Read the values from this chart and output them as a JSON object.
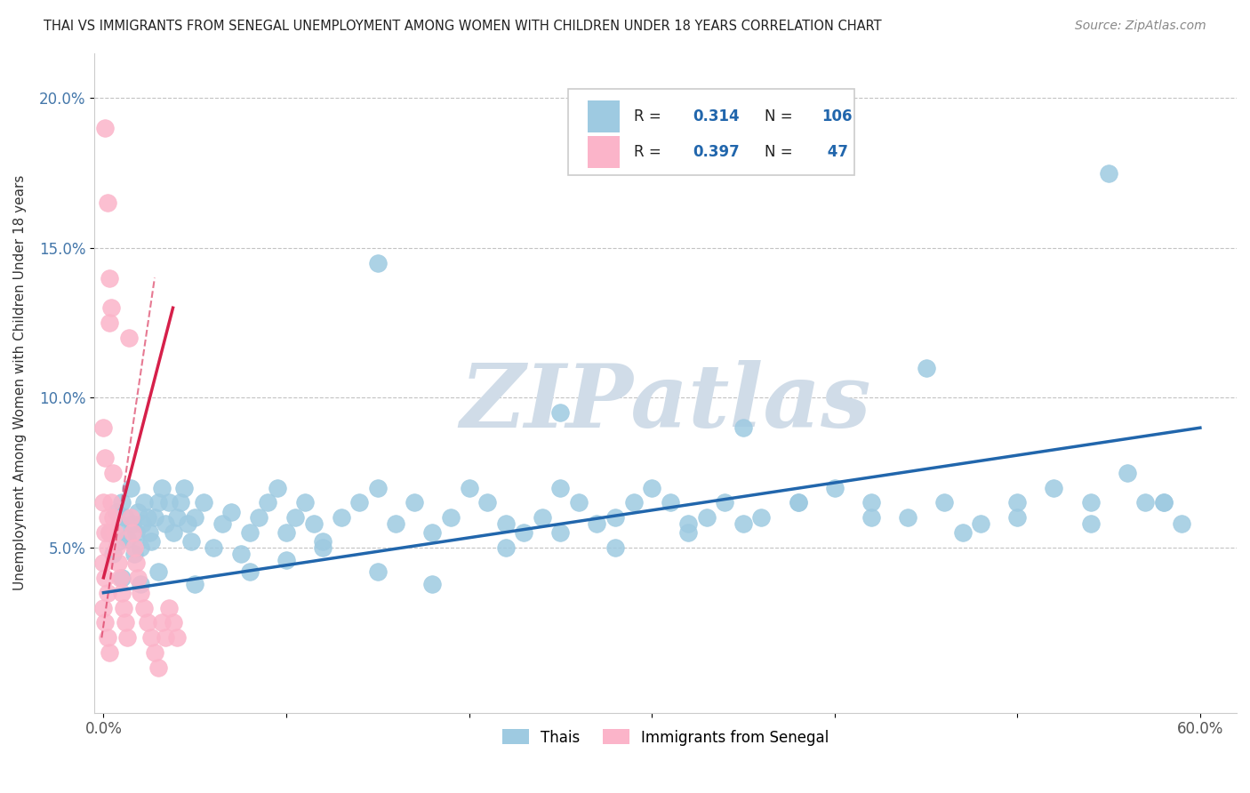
{
  "title": "THAI VS IMMIGRANTS FROM SENEGAL UNEMPLOYMENT AMONG WOMEN WITH CHILDREN UNDER 18 YEARS CORRELATION CHART",
  "source": "Source: ZipAtlas.com",
  "ylabel": "Unemployment Among Women with Children Under 18 years",
  "xlim": [
    -0.005,
    0.62
  ],
  "ylim": [
    -0.005,
    0.215
  ],
  "yticks": [
    0.05,
    0.1,
    0.15,
    0.2
  ],
  "ytick_labels": [
    "5.0%",
    "10.0%",
    "15.0%",
    "20.0%"
  ],
  "xticks": [
    0.0,
    0.1,
    0.2,
    0.3,
    0.4,
    0.5,
    0.6
  ],
  "xtick_labels": [
    "0.0%",
    "",
    "",
    "",
    "",
    "",
    "60.0%"
  ],
  "legend_label1": "Thais",
  "legend_label2": "Immigrants from Senegal",
  "color_thai": "#9ecae1",
  "color_senegal": "#fbb4c9",
  "color_line_thai": "#2166ac",
  "color_line_senegal": "#d6204a",
  "watermark": "ZIPatlas",
  "watermark_color": "#d0dce8",
  "R1": "0.314",
  "N1": "106",
  "R2": "0.397",
  "N2": " 47",
  "R_color": "#2166ac",
  "N_color": "#2166ac",
  "thai_x": [
    0.003,
    0.005,
    0.007,
    0.008,
    0.009,
    0.01,
    0.012,
    0.013,
    0.015,
    0.016,
    0.017,
    0.018,
    0.019,
    0.02,
    0.021,
    0.022,
    0.024,
    0.025,
    0.026,
    0.028,
    0.03,
    0.032,
    0.034,
    0.036,
    0.038,
    0.04,
    0.042,
    0.044,
    0.046,
    0.048,
    0.05,
    0.055,
    0.06,
    0.065,
    0.07,
    0.075,
    0.08,
    0.085,
    0.09,
    0.095,
    0.1,
    0.105,
    0.11,
    0.115,
    0.12,
    0.13,
    0.14,
    0.15,
    0.16,
    0.17,
    0.18,
    0.19,
    0.2,
    0.21,
    0.22,
    0.23,
    0.24,
    0.25,
    0.26,
    0.27,
    0.28,
    0.29,
    0.3,
    0.31,
    0.32,
    0.33,
    0.34,
    0.35,
    0.36,
    0.38,
    0.4,
    0.42,
    0.44,
    0.46,
    0.48,
    0.5,
    0.52,
    0.54,
    0.56,
    0.58,
    0.01,
    0.02,
    0.03,
    0.05,
    0.08,
    0.1,
    0.12,
    0.15,
    0.18,
    0.22,
    0.25,
    0.28,
    0.32,
    0.38,
    0.42,
    0.47,
    0.5,
    0.54,
    0.57,
    0.59,
    0.15,
    0.25,
    0.35,
    0.45,
    0.55,
    0.58
  ],
  "thai_y": [
    0.055,
    0.048,
    0.062,
    0.052,
    0.058,
    0.065,
    0.06,
    0.053,
    0.07,
    0.058,
    0.048,
    0.055,
    0.062,
    0.05,
    0.058,
    0.065,
    0.06,
    0.055,
    0.052,
    0.06,
    0.065,
    0.07,
    0.058,
    0.065,
    0.055,
    0.06,
    0.065,
    0.07,
    0.058,
    0.052,
    0.06,
    0.065,
    0.05,
    0.058,
    0.062,
    0.048,
    0.055,
    0.06,
    0.065,
    0.07,
    0.055,
    0.06,
    0.065,
    0.058,
    0.052,
    0.06,
    0.065,
    0.07,
    0.058,
    0.065,
    0.055,
    0.06,
    0.07,
    0.065,
    0.058,
    0.055,
    0.06,
    0.07,
    0.065,
    0.058,
    0.06,
    0.065,
    0.07,
    0.065,
    0.058,
    0.06,
    0.065,
    0.058,
    0.06,
    0.065,
    0.07,
    0.065,
    0.06,
    0.065,
    0.058,
    0.065,
    0.07,
    0.065,
    0.075,
    0.065,
    0.04,
    0.038,
    0.042,
    0.038,
    0.042,
    0.046,
    0.05,
    0.042,
    0.038,
    0.05,
    0.055,
    0.05,
    0.055,
    0.065,
    0.06,
    0.055,
    0.06,
    0.058,
    0.065,
    0.058,
    0.145,
    0.095,
    0.09,
    0.11,
    0.175,
    0.065
  ],
  "senegal_x": [
    0.001,
    0.002,
    0.003,
    0.004,
    0.005,
    0.0,
    0.001,
    0.002,
    0.003,
    0.0,
    0.001,
    0.002,
    0.0,
    0.001,
    0.002,
    0.003,
    0.004,
    0.005,
    0.006,
    0.007,
    0.008,
    0.009,
    0.01,
    0.011,
    0.012,
    0.013,
    0.014,
    0.015,
    0.016,
    0.017,
    0.018,
    0.019,
    0.02,
    0.022,
    0.024,
    0.026,
    0.028,
    0.03,
    0.032,
    0.034,
    0.036,
    0.038,
    0.04,
    0.0,
    0.001,
    0.002,
    0.003
  ],
  "senegal_y": [
    0.19,
    0.165,
    0.14,
    0.13,
    0.075,
    0.09,
    0.08,
    0.06,
    0.055,
    0.065,
    0.055,
    0.05,
    0.045,
    0.04,
    0.035,
    0.125,
    0.065,
    0.06,
    0.055,
    0.05,
    0.045,
    0.04,
    0.035,
    0.03,
    0.025,
    0.02,
    0.12,
    0.06,
    0.055,
    0.05,
    0.045,
    0.04,
    0.035,
    0.03,
    0.025,
    0.02,
    0.015,
    0.01,
    0.025,
    0.02,
    0.03,
    0.025,
    0.02,
    0.03,
    0.025,
    0.02,
    0.015
  ]
}
